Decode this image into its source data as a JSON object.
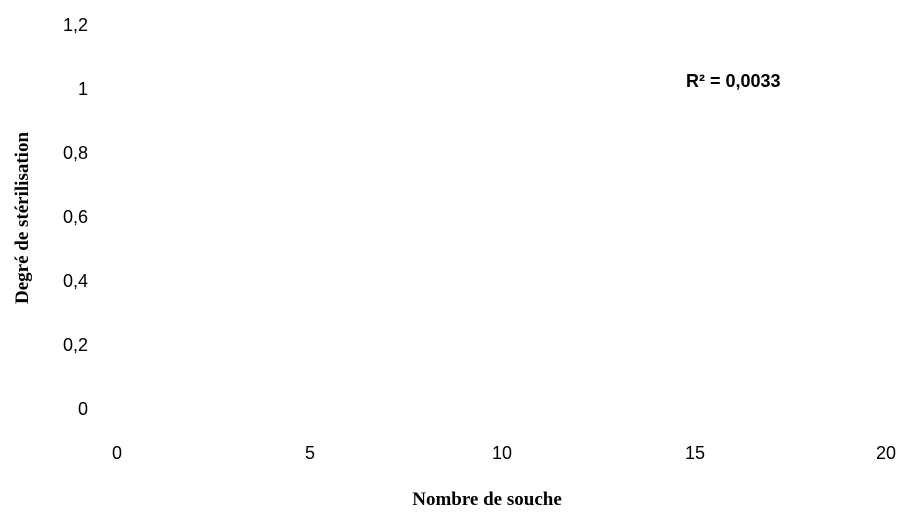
{
  "chart_data": {
    "type": "scatter",
    "title": "",
    "xlabel": "Nombre de souche",
    "ylabel": "Degré de stérilisation",
    "xlim": [
      0,
      20
    ],
    "ylim": [
      0,
      1.2
    ],
    "x_ticks": [
      "0",
      "5",
      "10",
      "15",
      "20"
    ],
    "y_ticks": [
      "0",
      "0,2",
      "0,4",
      "0,6",
      "0,8",
      "1",
      "1,2"
    ],
    "grid": false,
    "legend": "none",
    "annotation": "R² = 0,0033",
    "series": [
      {
        "values": []
      }
    ]
  }
}
